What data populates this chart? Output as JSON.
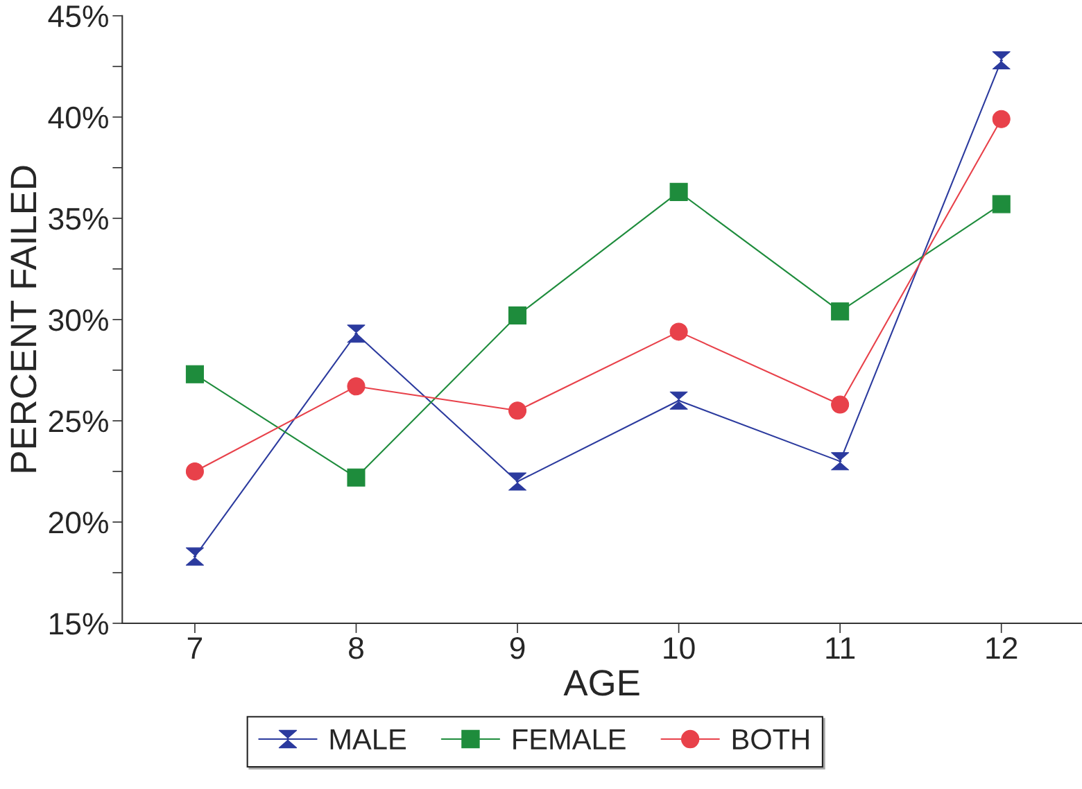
{
  "chart_data": {
    "type": "line",
    "xlabel": "AGE",
    "ylabel": "PERCENT FAILED",
    "x": [
      7,
      8,
      9,
      10,
      11,
      12
    ],
    "series": [
      {
        "name": "MALE",
        "color": "#2b3a9e",
        "marker": "cross",
        "values": [
          18.3,
          29.3,
          22.0,
          26.0,
          23.0,
          42.8
        ]
      },
      {
        "name": "FEMALE",
        "color": "#1e8c3c",
        "marker": "square",
        "values": [
          27.3,
          22.2,
          30.2,
          36.3,
          30.4,
          35.7
        ]
      },
      {
        "name": "BOTH",
        "color": "#e8414a",
        "marker": "circle",
        "values": [
          22.5,
          26.7,
          25.5,
          29.4,
          25.8,
          39.9
        ]
      }
    ],
    "xlim": [
      6.55,
      12.5
    ],
    "xticks": [
      7,
      8,
      9,
      10,
      11,
      12
    ],
    "ylim": [
      15,
      45
    ],
    "yticks": [
      {
        "value": 15,
        "label": "15%"
      },
      {
        "value": 17.5,
        "label": null
      },
      {
        "value": 20,
        "label": "20%"
      },
      {
        "value": 22.5,
        "label": null
      },
      {
        "value": 25,
        "label": "25%"
      },
      {
        "value": 27.5,
        "label": null
      },
      {
        "value": 30,
        "label": "30%"
      },
      {
        "value": 32.5,
        "label": null
      },
      {
        "value": 35,
        "label": "35%"
      },
      {
        "value": 37.5,
        "label": null
      },
      {
        "value": 40,
        "label": "40%"
      },
      {
        "value": 42.5,
        "label": null
      },
      {
        "value": 45,
        "label": "45%"
      }
    ],
    "grid": false,
    "legend": "bottom",
    "line_style": "solid"
  }
}
